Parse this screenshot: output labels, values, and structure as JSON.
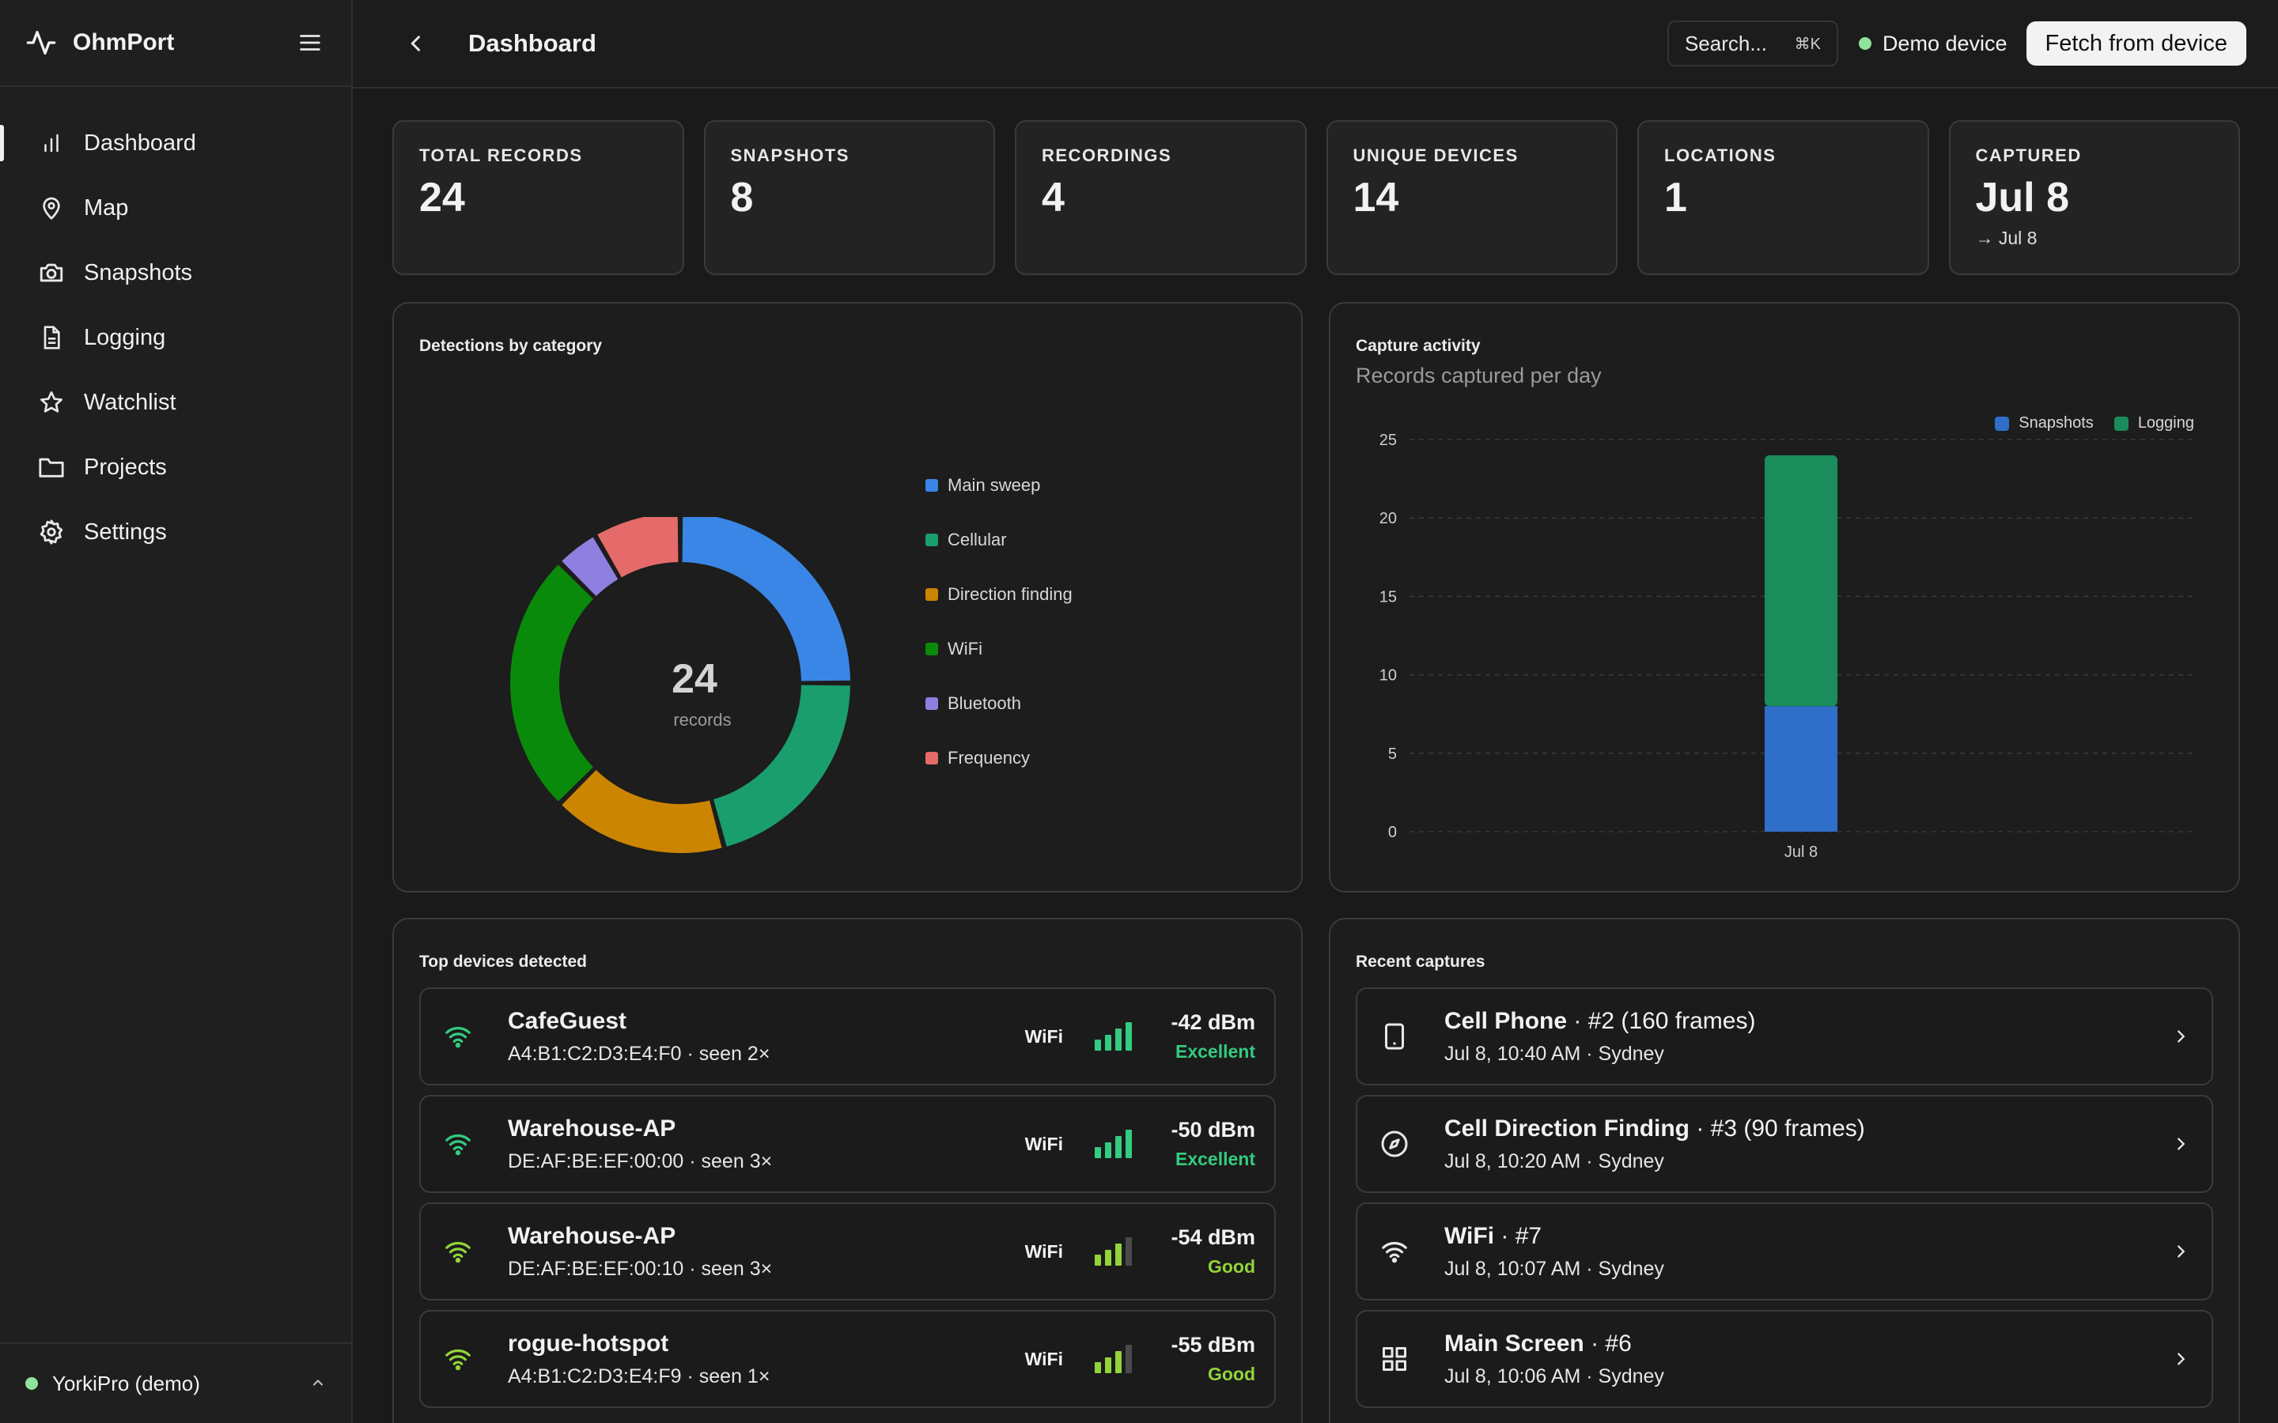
{
  "app": {
    "name": "OhmPort"
  },
  "sidebar": {
    "items": [
      {
        "label": "Dashboard",
        "icon": "bar-chart-icon",
        "active": true
      },
      {
        "label": "Map",
        "icon": "map-pin-icon"
      },
      {
        "label": "Snapshots",
        "icon": "camera-icon"
      },
      {
        "label": "Logging",
        "icon": "document-icon"
      },
      {
        "label": "Watchlist",
        "icon": "star-icon"
      },
      {
        "label": "Projects",
        "icon": "folder-icon"
      },
      {
        "label": "Settings",
        "icon": "gear-icon"
      }
    ],
    "footer": {
      "device_label": "YorkiPro (demo)"
    }
  },
  "topbar": {
    "title": "Dashboard",
    "search_label": "Search...",
    "search_shortcut": "⌘K",
    "demo_label": "Demo device",
    "fetch_label": "Fetch from device"
  },
  "stats": [
    {
      "label": "TOTAL RECORDS",
      "value": "24"
    },
    {
      "label": "SNAPSHOTS",
      "value": "8"
    },
    {
      "label": "RECORDINGS",
      "value": "4"
    },
    {
      "label": "UNIQUE DEVICES",
      "value": "14"
    },
    {
      "label": "LOCATIONS",
      "value": "1"
    },
    {
      "label": "CAPTURED",
      "value": "Jul 8",
      "sub": "→ Jul 8"
    }
  ],
  "detections": {
    "title": "Detections by category",
    "center_value": "24",
    "center_label": "records",
    "legend": [
      "Main sweep",
      "Cellular",
      "Direction finding",
      "WiFi",
      "Bluetooth",
      "Frequency"
    ]
  },
  "activity": {
    "title": "Capture activity",
    "subtitle": "Records captured per day",
    "legend": [
      "Snapshots",
      "Logging"
    ]
  },
  "chart_data": [
    {
      "type": "pie",
      "title": "Detections by category",
      "categories": [
        "Main sweep",
        "Cellular",
        "Direction finding",
        "WiFi",
        "Bluetooth",
        "Frequency"
      ],
      "values": [
        6,
        5,
        4,
        6,
        1,
        2
      ],
      "colors": [
        "#3a86e6",
        "#1a9e6e",
        "#cc8500",
        "#0a8a0a",
        "#8e7fe0",
        "#e56a6a"
      ],
      "total": 24
    },
    {
      "type": "bar",
      "title": "Capture activity",
      "subtitle": "Records captured per day",
      "categories": [
        "Jul 8"
      ],
      "series": [
        {
          "name": "Snapshots",
          "values": [
            8
          ],
          "color": "#2f6fc9"
        },
        {
          "name": "Logging",
          "values": [
            16
          ],
          "color": "#1b8c5c"
        }
      ],
      "stacked": true,
      "ylim": [
        0,
        25
      ],
      "yticks": [
        0,
        5,
        10,
        15,
        20,
        25
      ],
      "grid": true,
      "legend": "top-right"
    }
  ],
  "top_devices": {
    "title": "Top devices detected",
    "rows": [
      {
        "name": "CafeGuest",
        "detail": "A4:B1:C2:D3:E4:F0 · seen 2×",
        "type": "WiFi",
        "dbm": "-42 dBm",
        "quality": "Excellent",
        "level": 4,
        "color": "#33cc80"
      },
      {
        "name": "Warehouse-AP",
        "detail": "DE:AF:BE:EF:00:00 · seen 3×",
        "type": "WiFi",
        "dbm": "-50 dBm",
        "quality": "Excellent",
        "level": 4,
        "color": "#33cc80"
      },
      {
        "name": "Warehouse-AP",
        "detail": "DE:AF:BE:EF:00:10 · seen 3×",
        "type": "WiFi",
        "dbm": "-54 dBm",
        "quality": "Good",
        "level": 3,
        "color": "#92d43a"
      },
      {
        "name": "rogue-hotspot",
        "detail": "A4:B1:C2:D3:E4:F9 · seen 1×",
        "type": "WiFi",
        "dbm": "-55 dBm",
        "quality": "Good",
        "level": 3,
        "color": "#92d43a"
      }
    ]
  },
  "recent_captures": {
    "title": "Recent captures",
    "rows": [
      {
        "name": "Cell Phone",
        "suffix": " · #2 (160 frames)",
        "detail": "Jul 8, 10:40 AM · Sydney",
        "icon": "phone-icon"
      },
      {
        "name": "Cell Direction Finding",
        "suffix": " · #3 (90 frames)",
        "detail": "Jul 8, 10:20 AM · Sydney",
        "icon": "compass-icon"
      },
      {
        "name": "WiFi",
        "suffix": " · #7",
        "detail": "Jul 8, 10:07 AM · Sydney",
        "icon": "wifi-icon"
      },
      {
        "name": "Main Screen",
        "suffix": " · #6",
        "detail": "Jul 8, 10:06 AM · Sydney",
        "icon": "grid-icon"
      }
    ]
  }
}
